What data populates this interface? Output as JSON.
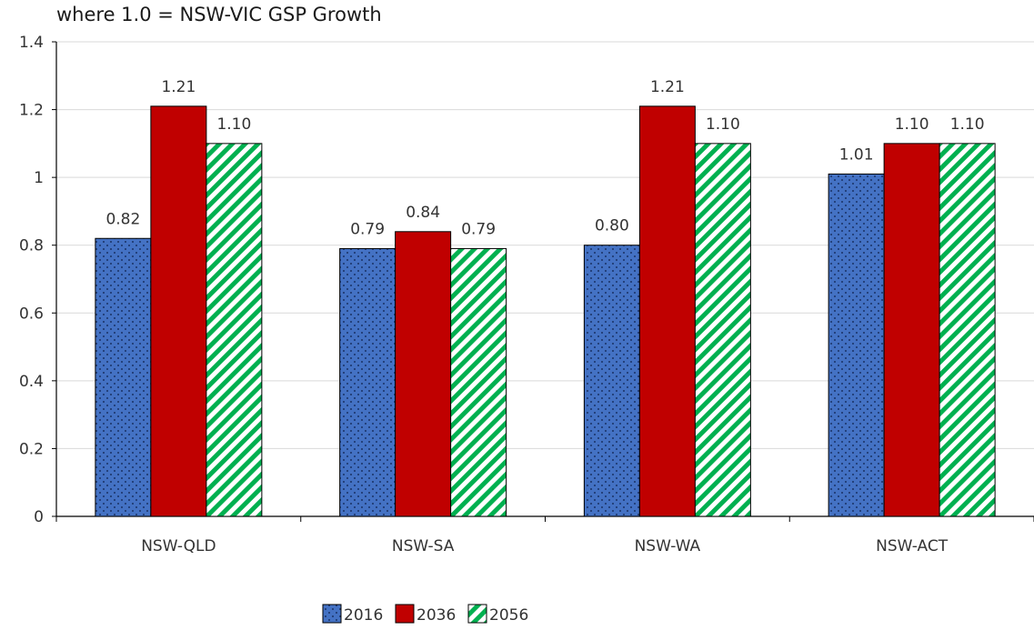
{
  "chart_data": {
    "type": "bar",
    "title": "where 1.0 = NSW-VIC GSP Growth",
    "categories": [
      "NSW-QLD",
      "NSW-SA",
      "NSW-WA",
      "NSW-ACT"
    ],
    "series": [
      {
        "name": "2016",
        "values": [
          0.82,
          0.79,
          0.8,
          1.01
        ],
        "labels": [
          "0.82",
          "0.79",
          "0.80",
          "1.01"
        ],
        "color": "#4472C4",
        "pattern": "dots"
      },
      {
        "name": "2036",
        "values": [
          1.21,
          0.84,
          1.21,
          1.1
        ],
        "labels": [
          "1.21",
          "0.84",
          "1.21",
          "1.10"
        ],
        "color": "#C00000",
        "pattern": "solid"
      },
      {
        "name": "2056",
        "values": [
          1.1,
          0.79,
          1.1,
          1.1
        ],
        "labels": [
          "1.10",
          "0.79",
          "1.10",
          "1.10"
        ],
        "color": "#00B050",
        "pattern": "diagonal-stripes"
      }
    ],
    "ylim": [
      0,
      1.4
    ],
    "yticks": [
      "0",
      "0.2",
      "0.4",
      "0.6",
      "0.8",
      "1",
      "1.2",
      "1.4"
    ],
    "grid": true,
    "legend_position": "bottom"
  }
}
